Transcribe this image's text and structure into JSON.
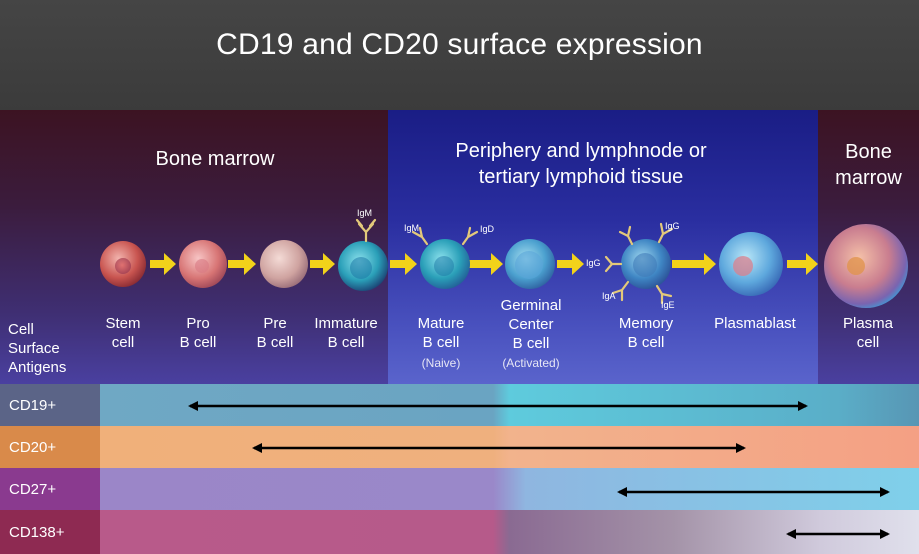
{
  "title": "CD19 and CD20 surface expression",
  "zones": {
    "bone_marrow_left": "Bone marrow",
    "periphery_line1": "Periphery and lymphnode or",
    "periphery_line2": "tertiary lymphoid tissue",
    "bone_marrow_right_line1": "Bone",
    "bone_marrow_right_line2": "marrow"
  },
  "cell_surface_antigens": [
    "Cell",
    "Surface",
    "Antigens"
  ],
  "cells": [
    {
      "id": "stem",
      "line1": "Stem",
      "line2": "cell",
      "line3": "",
      "sub": ""
    },
    {
      "id": "pro",
      "line1": "Pro",
      "line2": "B cell",
      "line3": "",
      "sub": ""
    },
    {
      "id": "pre",
      "line1": "Pre",
      "line2": "B cell",
      "line3": "",
      "sub": ""
    },
    {
      "id": "immature",
      "line1": "Immature",
      "line2": "B cell",
      "line3": "",
      "sub": ""
    },
    {
      "id": "mature",
      "line1": "Mature",
      "line2": "B cell",
      "line3": "",
      "sub": "(Naive)"
    },
    {
      "id": "germinal",
      "line1": "Germinal",
      "line2": "Center",
      "line3": "B cell",
      "sub": "(Activated)"
    },
    {
      "id": "memory",
      "line1": "Memory",
      "line2": "B cell",
      "line3": "",
      "sub": ""
    },
    {
      "id": "plasmablast",
      "line1": "Plasmablast",
      "line2": "",
      "line3": "",
      "sub": ""
    },
    {
      "id": "plasma",
      "line1": "Plasma",
      "line2": "cell",
      "line3": "",
      "sub": ""
    }
  ],
  "antibodies": {
    "immature_igm": "IgM",
    "mature_igm": "IgM",
    "mature_igd": "IgD",
    "memory_igg_top": "IgG",
    "memory_igg_left": "IgG",
    "memory_iga": "IgA",
    "memory_ige": "IgE"
  },
  "antigens": [
    {
      "name": "CD19+",
      "label_color": "#5b6487",
      "color_left": "#6fa8c4",
      "color_right": "#5fc4d8",
      "expressed_from": "Pro B cell",
      "expressed_to": "Plasmablast"
    },
    {
      "name": "CD20+",
      "label_color": "#d98a4a",
      "color_left": "#f0b07a",
      "color_right": "#f4a084",
      "expressed_from": "Pre B cell",
      "expressed_to": "Memory B cell"
    },
    {
      "name": "CD27+",
      "label_color": "#8a3a8f",
      "color_left": "#9b86c8",
      "color_right": "#7fd0ea",
      "expressed_from": "Memory B cell",
      "expressed_to": "Plasma cell"
    },
    {
      "name": "CD138+",
      "label_color": "#8e2a52",
      "color_left": "#b85a8a",
      "color_right": "#e0e0ec",
      "expressed_from": "Plasmablast",
      "expressed_to": "Plasma cell"
    }
  ],
  "colors": {
    "arrow": "#f2d21a",
    "bone_marrow_bg": "#3b1c3d",
    "periphery_bg": "#2a2ea0",
    "expression_arrow": "#000000"
  }
}
